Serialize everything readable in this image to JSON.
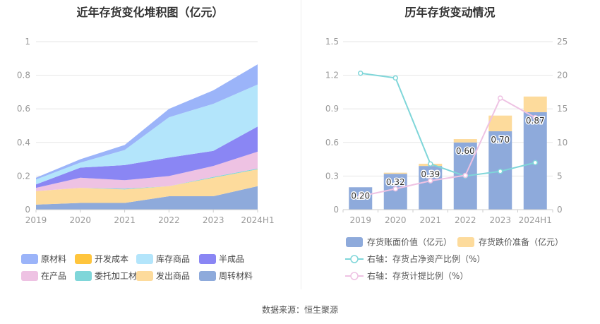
{
  "left_title": "近年存货变化堆积图（亿元）",
  "right_title": "历年存货变动情况",
  "source": "数据来源：恒生聚源",
  "chart_data": [
    {
      "type": "area",
      "stacked": true,
      "title": "近年存货变化堆积图（亿元）",
      "x": [
        "2019",
        "2020",
        "2021",
        "2022",
        "2023",
        "2024H1"
      ],
      "ylim": [
        0,
        1
      ],
      "yticks": [
        "0",
        "0.2",
        "0.4",
        "0.6",
        "0.8",
        "1"
      ],
      "grid": true,
      "legend_position": "bottom",
      "legend_order": [
        "原材料",
        "开发成本",
        "库存商品",
        "半成品",
        "在产品",
        "委托加工材料",
        "发出商品",
        "周转材料"
      ],
      "series": [
        {
          "name": "周转材料",
          "color": "#8eaadb",
          "values": [
            0.03,
            0.04,
            0.04,
            0.08,
            0.08,
            0.14
          ]
        },
        {
          "name": "发出商品",
          "color": "#fddb9c",
          "values": [
            0.08,
            0.09,
            0.08,
            0.06,
            0.11,
            0.1
          ]
        },
        {
          "name": "委托加工材料",
          "color": "#7fd6d9",
          "values": [
            0.0,
            0.0,
            0.005,
            0.0,
            0.005,
            0.005
          ]
        },
        {
          "name": "在产品",
          "color": "#eec2e3",
          "values": [
            0.02,
            0.06,
            0.05,
            0.06,
            0.065,
            0.1
          ]
        },
        {
          "name": "半成品",
          "color": "#8a86f4",
          "values": [
            0.02,
            0.06,
            0.09,
            0.11,
            0.09,
            0.15
          ]
        },
        {
          "name": "库存商品",
          "color": "#b3e5fb",
          "values": [
            0.03,
            0.03,
            0.09,
            0.24,
            0.28,
            0.25
          ]
        },
        {
          "name": "开发成本",
          "color": "#ffc53d",
          "values": [
            0,
            0,
            0,
            0,
            0,
            0
          ]
        },
        {
          "name": "原材料",
          "color": "#9bb4f9",
          "values": [
            0.01,
            0.02,
            0.03,
            0.05,
            0.08,
            0.12
          ]
        }
      ]
    },
    {
      "type": "bar",
      "title": "历年存货变动情况",
      "categories": [
        "2019",
        "2020",
        "2021",
        "2022",
        "2023",
        "2024H1"
      ],
      "ylim": [
        0,
        1.5
      ],
      "yticks": [
        "0",
        "0.3",
        "0.6",
        "0.9",
        "1.2",
        "1.5"
      ],
      "y2lim": [
        0,
        25
      ],
      "y2ticks": [
        "0",
        "5",
        "10",
        "15",
        "20",
        "25"
      ],
      "series": [
        {
          "name": "存货账面价值（亿元）",
          "color": "#8eaadb",
          "values": [
            0.2,
            0.32,
            0.39,
            0.6,
            0.7,
            0.87
          ],
          "data_labels": [
            "0.20",
            "0.32",
            "0.39",
            "0.60",
            "0.70",
            "0.87"
          ]
        },
        {
          "name": "存货跌价准备（亿元）",
          "color": "#fddb9c",
          "values": [
            0.0,
            0.01,
            0.02,
            0.03,
            0.14,
            0.14
          ]
        },
        {
          "name": "右轴：存货占净资产比例（%）",
          "type": "line",
          "axis": "right",
          "color": "#7fd6d9",
          "values": [
            20.3,
            19.6,
            6.8,
            5.0,
            5.7,
            7.0
          ]
        },
        {
          "name": "右轴：存货计提比例（%）",
          "type": "line",
          "axis": "right",
          "color": "#eec2e3",
          "values": [
            2.0,
            3.1,
            4.3,
            5.1,
            16.6,
            13.7
          ]
        }
      ]
    }
  ]
}
